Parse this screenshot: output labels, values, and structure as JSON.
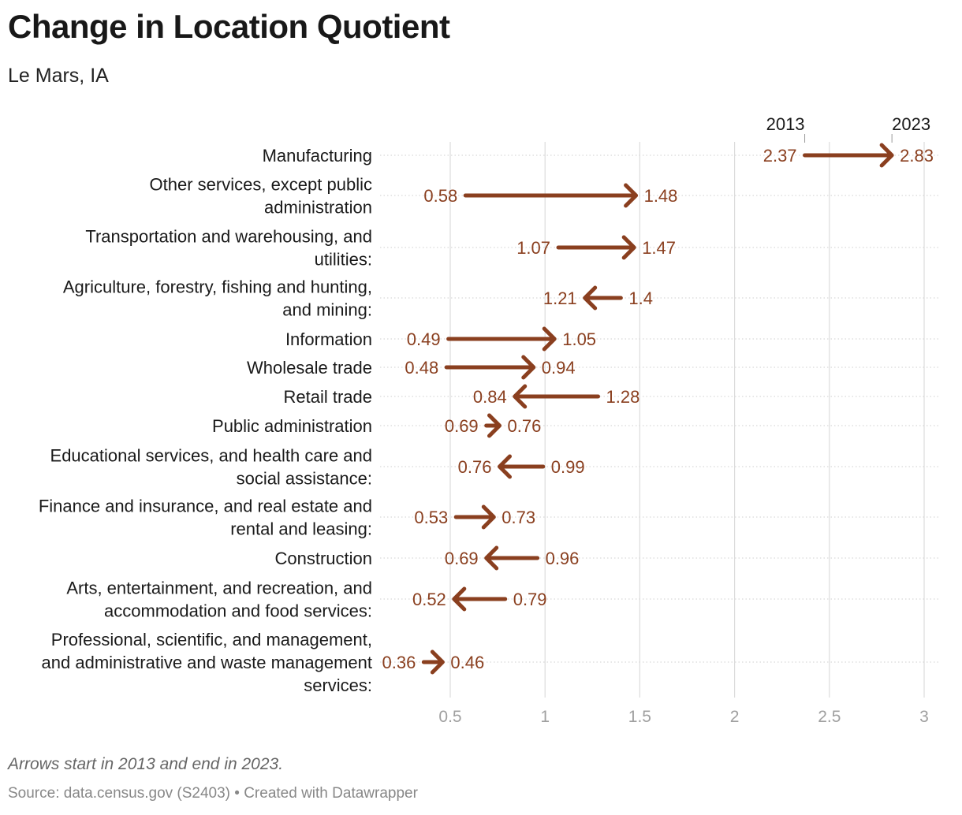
{
  "title": "Change in Location Quotient",
  "subtitle": "Le Mars, IA",
  "note": "Arrows start in 2013 and end in 2023.",
  "source": "Source: data.census.gov (S2403) • Created with Datawrapper",
  "colors": {
    "arrow": "#8a3f1f",
    "label": "#8a3f1f",
    "grid": "#dcdcdc",
    "tick": "#a0a0a0"
  },
  "chart_data": {
    "type": "arrow",
    "title": "Change in Location Quotient",
    "subtitle": "Le Mars, IA",
    "start_label": "2013",
    "end_label": "2023",
    "xlim": [
      0.36,
      3.0
    ],
    "xticks": [
      0.5,
      1,
      1.5,
      2,
      2.5,
      3
    ],
    "xtick_labels": [
      "0.5",
      "1",
      "1.5",
      "2",
      "2.5",
      "3"
    ],
    "categories": [
      {
        "label": [
          "Manufacturing"
        ],
        "start": 2.37,
        "end": 2.83,
        "start_label": "2.37",
        "end_label": "2.83"
      },
      {
        "label": [
          "Other services, except public",
          "administration"
        ],
        "start": 0.58,
        "end": 1.48,
        "start_label": "0.58",
        "end_label": "1.48"
      },
      {
        "label": [
          "Transportation and warehousing, and",
          "utilities:"
        ],
        "start": 1.07,
        "end": 1.47,
        "start_label": "1.07",
        "end_label": "1.47"
      },
      {
        "label": [
          "Agriculture, forestry, fishing and hunting,",
          "and mining:"
        ],
        "start": 1.4,
        "end": 1.21,
        "start_label": "1.4",
        "end_label": "1.21"
      },
      {
        "label": [
          "Information"
        ],
        "start": 0.49,
        "end": 1.05,
        "start_label": "0.49",
        "end_label": "1.05"
      },
      {
        "label": [
          "Wholesale trade"
        ],
        "start": 0.48,
        "end": 0.94,
        "start_label": "0.48",
        "end_label": "0.94"
      },
      {
        "label": [
          "Retail trade"
        ],
        "start": 1.28,
        "end": 0.84,
        "start_label": "1.28",
        "end_label": "0.84"
      },
      {
        "label": [
          "Public administration"
        ],
        "start": 0.69,
        "end": 0.76,
        "start_label": "0.69",
        "end_label": "0.76"
      },
      {
        "label": [
          "Educational services, and health care and",
          "social assistance:"
        ],
        "start": 0.99,
        "end": 0.76,
        "start_label": "0.99",
        "end_label": "0.76"
      },
      {
        "label": [
          "Finance and insurance, and real estate and",
          "rental and leasing:"
        ],
        "start": 0.53,
        "end": 0.73,
        "start_label": "0.53",
        "end_label": "0.73"
      },
      {
        "label": [
          "Construction"
        ],
        "start": 0.96,
        "end": 0.69,
        "start_label": "0.96",
        "end_label": "0.69"
      },
      {
        "label": [
          "Arts, entertainment, and recreation, and",
          "accommodation and food services:"
        ],
        "start": 0.79,
        "end": 0.52,
        "start_label": "0.79",
        "end_label": "0.52"
      },
      {
        "label": [
          "Professional, scientific, and management,",
          "and administrative and waste management",
          "services:"
        ],
        "start": 0.36,
        "end": 0.46,
        "start_label": "0.36",
        "end_label": "0.46"
      }
    ]
  }
}
